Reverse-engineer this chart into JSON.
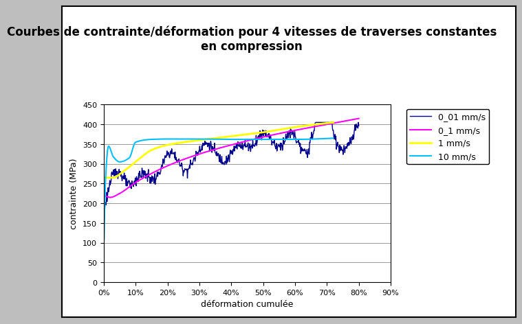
{
  "title": "Courbes de contrainte/déformation pour 4 vitesses de traverses constantes\nen compression",
  "xlabel": "déformation cumulée",
  "ylabel": "contrainte (MPa)",
  "xlim": [
    0,
    0.9
  ],
  "ylim": [
    0,
    450
  ],
  "yticks": [
    0,
    50,
    100,
    150,
    200,
    250,
    300,
    350,
    400,
    450
  ],
  "xticks": [
    0,
    0.1,
    0.2,
    0.3,
    0.4,
    0.5,
    0.6,
    0.7,
    0.8,
    0.9
  ],
  "legend_labels": [
    "0_01 mm/s",
    "0_1 mm/s",
    "1 mm/s",
    "10 mm/s"
  ],
  "colors": {
    "navy": "#00008B",
    "magenta": "#FF00FF",
    "yellow": "#FFFF00",
    "cyan": "#00BFFF"
  },
  "bg_color": "#FFFFFF",
  "outer_bg": "#BEBEBE",
  "title_fontsize": 12,
  "axis_label_fontsize": 9,
  "tick_fontsize": 8,
  "legend_fontsize": 9
}
